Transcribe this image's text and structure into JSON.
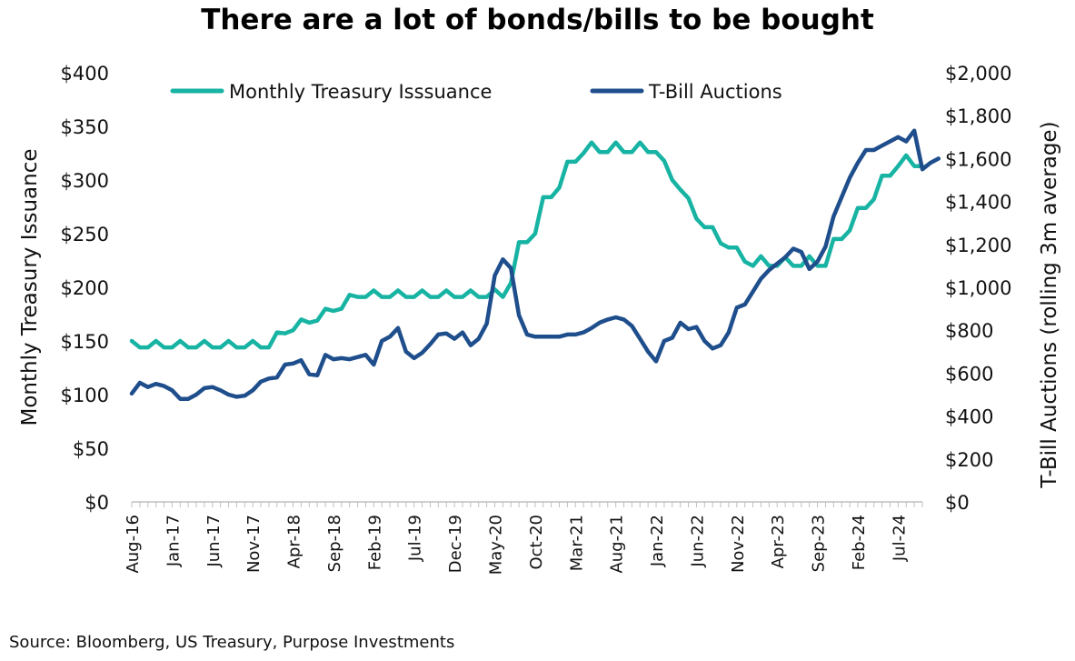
{
  "title": "There are a lot of bonds/bills to be bought",
  "source": "Source: Bloomberg, US Treasury, Purpose Investments",
  "chart_data": {
    "type": "line",
    "title": "There are a lot of bonds/bills to be bought",
    "ylabel_left": "Monthly Treasury Issuance",
    "ylabel_right": "T-Bill Auctions (rolling 3m average)",
    "y_left_range": [
      0,
      400
    ],
    "y_right_range": [
      0,
      2000
    ],
    "y_left_ticks": [
      "$0",
      "$50",
      "$100",
      "$150",
      "$200",
      "$250",
      "$300",
      "$350",
      "$400"
    ],
    "y_right_ticks": [
      "$0",
      "$200",
      "$400",
      "$600",
      "$800",
      "$1,000",
      "$1,200",
      "$1,400",
      "$1,600",
      "$1,800",
      "$2,000"
    ],
    "x_tick_labels": [
      "Aug-16",
      "Jan-17",
      "Jun-17",
      "Nov-17",
      "Apr-18",
      "Sep-18",
      "Feb-19",
      "Jul-19",
      "Dec-19",
      "May-20",
      "Oct-20",
      "Mar-21",
      "Aug-21",
      "Jan-22",
      "Jun-22",
      "Nov-22",
      "Apr-23",
      "Sep-23",
      "Feb-24",
      "Jul-24"
    ],
    "x_start": "Aug-16",
    "grid": false,
    "legend_position": "top-center",
    "series": [
      {
        "name": "Monthly Treasury Isssuance",
        "axis": "left",
        "color": "#17b3a3",
        "values": [
          150,
          144,
          144,
          150,
          144,
          144,
          150,
          144,
          144,
          150,
          144,
          144,
          150,
          144,
          144,
          150,
          144,
          144,
          158,
          157,
          160,
          170,
          167,
          169,
          180,
          178,
          180,
          193,
          191,
          191,
          197,
          191,
          191,
          197,
          191,
          191,
          197,
          191,
          191,
          197,
          191,
          191,
          197,
          191,
          191,
          198,
          191,
          204,
          242,
          242,
          250,
          284,
          284,
          293,
          317,
          317,
          325,
          335,
          326,
          326,
          335,
          326,
          326,
          335,
          326,
          326,
          318,
          300,
          291,
          283,
          264,
          256,
          256,
          241,
          237,
          237,
          224,
          220,
          229,
          220,
          220,
          228,
          220,
          220,
          229,
          220,
          220,
          245,
          245,
          253,
          274,
          274,
          282,
          304,
          304,
          313,
          323,
          313,
          313
        ]
      },
      {
        "name": "T-Bill Auctions",
        "axis": "right",
        "color": "#1f4e8c",
        "values": [
          505,
          555,
          535,
          550,
          540,
          520,
          480,
          480,
          500,
          530,
          535,
          520,
          500,
          490,
          495,
          520,
          560,
          575,
          580,
          640,
          645,
          660,
          595,
          590,
          685,
          665,
          670,
          665,
          675,
          685,
          640,
          750,
          770,
          810,
          700,
          670,
          695,
          735,
          780,
          785,
          760,
          790,
          730,
          760,
          830,
          1055,
          1130,
          1090,
          870,
          780,
          770,
          770,
          770,
          770,
          780,
          780,
          790,
          810,
          835,
          850,
          860,
          850,
          820,
          760,
          700,
          655,
          750,
          765,
          835,
          805,
          815,
          750,
          715,
          730,
          790,
          905,
          920,
          980,
          1040,
          1080,
          1110,
          1140,
          1180,
          1165,
          1085,
          1120,
          1190,
          1330,
          1420,
          1510,
          1580,
          1640,
          1640,
          1660,
          1680,
          1700,
          1680,
          1730,
          1550,
          1580,
          1600
        ]
      }
    ]
  }
}
